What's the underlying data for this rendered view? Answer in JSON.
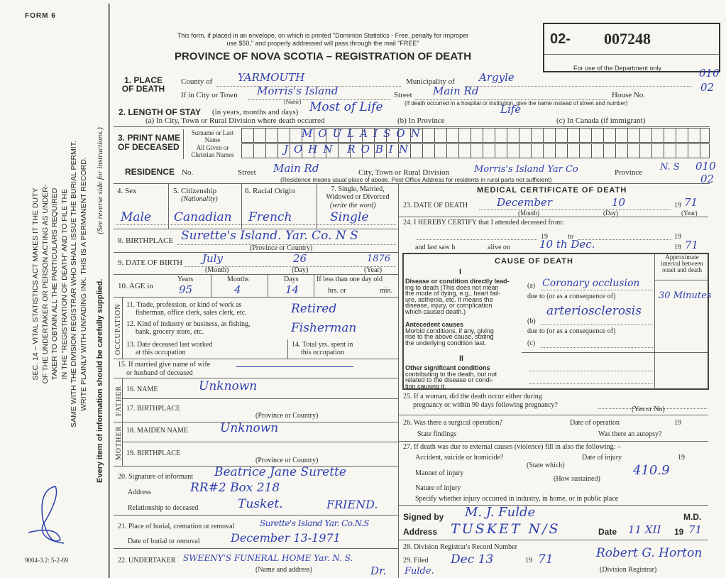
{
  "form_label": "FORM 6",
  "notice": [
    "This form, if placed in an envelope, on which is printed \"Dominion Statistics - Free, penalty for improper",
    "use $50,\" and properly addressed will pass through the mail \"FREE\""
  ],
  "title": "PROVINCE OF NOVA SCOTIA – REGISTRATION OF DEATH",
  "registration_box": {
    "prefix": "02-",
    "number": "007248",
    "note": "For use of the Department only"
  },
  "margin_codes": {
    "top1": "010",
    "top2": "02",
    "res1": "010",
    "res2": "02"
  },
  "side_text": {
    "lines": [
      "SEC. 14 – VITAL STATISTICS ACT MAKES IT THE DUTY",
      "OF THE UNDERTAKER OR PERSON ACTING AS UNDER-",
      "TAKER TO OBTAIN ALL THE PARTICULARS REQUIRED",
      "IN THE \"REGISTRATION OF DEATH\" AND TO FILE THE",
      "SAME WITH THE DIVISION REGISTRAR WHO SHALL ISSUE THE BURIAL PERMIT.",
      "WRITE PLAINLY WITH UNFADING INK. THIS IS A PERMANENT RECORD."
    ],
    "every_item": "Every item of information should be carefully supplied.",
    "see_reverse": "(See reverse side for instructions.)",
    "form_code": "9004-3.2: 5-2-69"
  },
  "place_of_death": {
    "label": "1. PLACE OF DEATH",
    "county_label": "County of",
    "county": "YARMOUTH",
    "municipality_label": "Municipality of",
    "municipality": "Argyle",
    "city_label": "If in City or Town",
    "city": "Morris's Island",
    "name_note": "(Name)",
    "street_label": "Street",
    "street": "Main Rd",
    "house_label": "House No.",
    "hospital_note": "(If death occurred in a hospital or institution, give the name instead of street and number)"
  },
  "length_of_stay": {
    "label": "2. LENGTH OF STAY",
    "label_note": "(in years, months and days)",
    "a_label": "(a) In City, Town or Rural Division where death occurred",
    "a": "Most of Life",
    "b_label": "(b) In Province",
    "b": "Life",
    "c_label": "(c) In Canada (if immigrant)"
  },
  "name": {
    "label": "3. PRINT NAME OF DECEASED",
    "surname_label": "Surname or Last Name",
    "surname": "MOULAISON",
    "given_label": "All Given or Christian Names",
    "given": "JOHN   ROBIN"
  },
  "residence": {
    "label": "RESIDENCE",
    "no_label": "No.",
    "street_label": "Street",
    "street": "Main Rd",
    "city_label": "City, Town or Rural Division",
    "city": "Morris's Island Yar Co",
    "province_label": "Province",
    "province": "N. S",
    "note": "(Residence means usual place of abode. Post Office Address for residents in rural parts not sufficient)"
  },
  "personal": {
    "sex_label": "4. Sex",
    "sex": "Male",
    "citizenship_label": "5. Citizenship",
    "citizenship_note": "(Nationality)",
    "citizenship": "Canadian",
    "racial_label": "6. Racial Origin",
    "racial": "French",
    "marital_label": "7. Single, Married, Widowed or Divorced",
    "marital_note": "(write the word)",
    "marital": "Single"
  },
  "birthplace": {
    "label": "8. BIRTHPLACE",
    "value": "Surette's Island. Yar. Co. N S",
    "note": "(Province or Country)"
  },
  "dob": {
    "label": "9. DATE OF BIRTH",
    "month": "July",
    "day": "26",
    "year": "1876",
    "month_note": "(Month)",
    "day_note": "(Day)",
    "year_note": "(Year)"
  },
  "age": {
    "label": "10. AGE in",
    "years_label": "Years",
    "years": "95",
    "months_label": "Months",
    "months": "4",
    "days_label": "Days",
    "days": "14",
    "less_label": "If less than one day old",
    "hrs": "hrs. or",
    "min": "min."
  },
  "occupation": {
    "side": "OCCUPATION",
    "q11": [
      "11. Trade, profession, or kind of work as",
      "fisherman, office clerk, sales clerk, etc."
    ],
    "a11": "Retired",
    "q12": [
      "12. Kind of industry or business, as fishing,",
      "bank, grocery store, etc."
    ],
    "a12": "Fisherman",
    "q13": [
      "13. Date deceased last worked",
      "at this occupation"
    ],
    "q14": [
      "14. Total yrs. spent in",
      "this occupation"
    ]
  },
  "spouse": {
    "label": [
      "15. If married give name of wife",
      "or husband of deceased"
    ]
  },
  "father": {
    "side": "FATHER",
    "name_label": "16. NAME",
    "name": "Unknown",
    "birthplace_label": "17. BIRTHPLACE",
    "note": "(Province or Country)"
  },
  "mother": {
    "side": "MOTHER",
    "name_label": "18. MAIDEN NAME",
    "name": "Unknown",
    "birthplace_label": "19. BIRTHPLACE",
    "note": "(Province or Country)"
  },
  "informant": {
    "sig_label": "20. Signature of informant",
    "sig": "Beatrice Jane Surette",
    "address_label": "Address",
    "address": "RR#2 Box 218",
    "relation_label": "Relationship to deceased",
    "address2": "Tusket.",
    "relation": "FRIEND."
  },
  "burial": {
    "place_label": "21. Place of burial, cremation or removal",
    "place": "Surette's Island Yar. Co.N.S",
    "date_label": "Date of burial or removal",
    "date": "December 13-1971"
  },
  "undertaker": {
    "label": "22. UNDERTAKER",
    "value": "SWEENY'S FUNERAL HOME Yar. N. S.",
    "note": "(Name and address)",
    "extra": "Dr."
  },
  "medical": {
    "heading": "MEDICAL CERTIFICATE OF DEATH",
    "dod_label": "23. DATE OF DEATH",
    "dod_month": "December",
    "dod_day": "10",
    "dod_year_prefix": "19",
    "dod_year": "71",
    "month_note": "(Month)",
    "day_note": "(Day)",
    "year_note": "(Year)",
    "certify": "24. I HEREBY CERTIFY that I attended deceased from:",
    "yr19": "19",
    "to": "to",
    "last_saw": "and last saw h",
    "alive_on": "alive on",
    "last_date": "10 th Dec.",
    "last_year": "71"
  },
  "cause": {
    "heading": "CAUSE OF DEATH",
    "interval_label": "Approximate interval between onset and death",
    "part1": "I",
    "direct_bold": "Disease or condition directly lead-",
    "direct_text": [
      "ing to death (This does not mean",
      "the mode of dying, e.g., heart fail-",
      "ure, asthenia, etc. It means the",
      "disease, injury, or complication",
      "which caused death.)"
    ],
    "a": "(a)",
    "due1": "due to (or as a consequence of)",
    "a_value": "Coronary occlusion",
    "interval_a": "30 Minutes",
    "antecedent_bold": "Antecedent causes",
    "antecedent_text": [
      "Morbid conditions, if any, giving",
      "rise to the above cause, stating",
      "the underlying condition last."
    ],
    "b": "(b)",
    "b_value": "arteriosclerosis",
    "due2": "due to (or as a consequence of)",
    "c": "(c)",
    "part2": "II",
    "other_bold": "Other significant conditions",
    "other_text": [
      "contributing to the death, but not",
      "related to the disease or condi-",
      "tion causing it."
    ]
  },
  "q25": {
    "text": [
      "25. If a woman, did the death occur either during",
      "pregnancy or within 90 days following pregnancy?"
    ],
    "note": "(Yes or No)"
  },
  "q26": {
    "text": "26. Was there a surgical operation?",
    "date_label": "Date of operation",
    "yr": "19",
    "findings": "State findings",
    "autopsy": "Was there an autopsy?"
  },
  "q27": {
    "text": "27. If death was due to external causes (violence) fill in also the following: –",
    "accident": "Accident, suicide or homicide?",
    "state_which": "(State which)",
    "injury_date": "Date of injury",
    "yr": "19",
    "manner": "Manner of injury",
    "how": "(How sustained)",
    "code": "410.9",
    "nature": "Nature of injury",
    "specify": "Specify whether injury occurred in industry, in home, or in public place"
  },
  "signature": {
    "signed_label": "Signed by",
    "signed": "M. J. Fulde",
    "md": "M.D.",
    "address_label": "Address",
    "address": "TUSKET N/S",
    "date_label": "Date",
    "date": "11 XII",
    "yr_prefix": "19",
    "yr": "71"
  },
  "registrar": {
    "record_label": "28. Division Registrar's Record Number",
    "filed_label": "29. Filed",
    "filed": "Dec 13",
    "yr_prefix": "19",
    "yr": "71",
    "registrar": "Robert G. Horton",
    "registrar_note": "(Division Registrar)",
    "note": "Fulde."
  },
  "ink_color": "#2c3fae"
}
